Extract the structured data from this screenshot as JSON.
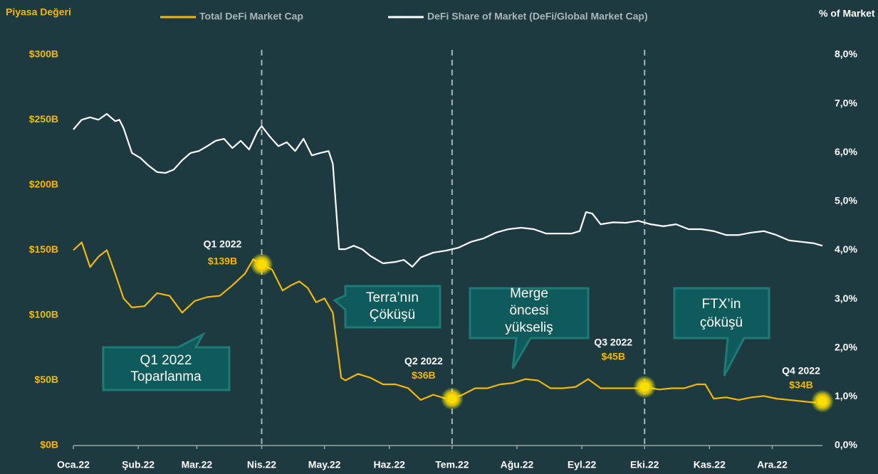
{
  "chart_data": {
    "type": "line",
    "y_label": "Piyasa Değeri",
    "y2_label": "% of Market",
    "xlim": [
      0,
      358
    ],
    "xticks": [
      {
        "value": 0,
        "label": "Oca.22"
      },
      {
        "value": 31,
        "label": "Şub.22"
      },
      {
        "value": 59,
        "label": "Mar.22"
      },
      {
        "value": 90,
        "label": "Nis.22"
      },
      {
        "value": 120,
        "label": "May.22"
      },
      {
        "value": 151,
        "label": "Haz.22"
      },
      {
        "value": 181,
        "label": "Tem.22"
      },
      {
        "value": 212,
        "label": "Ağu.22"
      },
      {
        "value": 243,
        "label": "Eyl.22"
      },
      {
        "value": 273,
        "label": "Eki.22"
      },
      {
        "value": 304,
        "label": "Kas.22"
      },
      {
        "value": 334,
        "label": "Ara.22"
      }
    ],
    "ylim": [
      0,
      300
    ],
    "yticks": [
      {
        "value": 0,
        "label": "$0B"
      },
      {
        "value": 50,
        "label": "$50B"
      },
      {
        "value": 100,
        "label": "$100B"
      },
      {
        "value": 150,
        "label": "$150B"
      },
      {
        "value": 200,
        "label": "$200B"
      },
      {
        "value": 250,
        "label": "$250B"
      },
      {
        "value": 300,
        "label": "$300B"
      }
    ],
    "y2lim": [
      0,
      8
    ],
    "y2ticks": [
      {
        "value": 0,
        "label": "0,0%"
      },
      {
        "value": 1,
        "label": "1,0%"
      },
      {
        "value": 2,
        "label": "2,0%"
      },
      {
        "value": 3,
        "label": "3,0%"
      },
      {
        "value": 4,
        "label": "4,0%"
      },
      {
        "value": 5,
        "label": "5,0%"
      },
      {
        "value": 6,
        "label": "6,0%"
      },
      {
        "value": 7,
        "label": "7,0%"
      },
      {
        "value": 8,
        "label": "8,0%"
      }
    ],
    "series": [
      {
        "name": "Total DeFi Market Cap",
        "color": "#f5b800",
        "axis": "y",
        "x": [
          0,
          4,
          8,
          12,
          16,
          20,
          24,
          28,
          34,
          40,
          46,
          52,
          58,
          64,
          70,
          76,
          82,
          86,
          90,
          95,
          100,
          104,
          108,
          112,
          116,
          120,
          124,
          128,
          130,
          136,
          142,
          148,
          154,
          160,
          166,
          172,
          178,
          181,
          186,
          192,
          198,
          204,
          210,
          216,
          222,
          228,
          234,
          240,
          246,
          252,
          258,
          264,
          270,
          273,
          280,
          286,
          292,
          298,
          302,
          306,
          312,
          318,
          324,
          330,
          336,
          342,
          348,
          354,
          358
        ],
        "values": [
          150,
          156,
          137,
          145,
          150,
          132,
          113,
          106,
          107,
          117,
          115,
          102,
          111,
          114,
          115,
          123,
          132,
          143,
          139,
          135,
          119,
          123,
          126,
          121,
          110,
          113,
          102,
          52,
          50,
          55,
          52,
          47,
          47,
          44,
          35,
          39,
          36,
          36,
          39,
          44,
          44,
          47,
          48,
          51,
          50,
          44,
          44,
          45,
          51,
          44,
          44,
          44,
          44,
          45,
          43,
          44,
          44,
          47,
          47,
          36,
          37,
          35,
          37,
          38,
          36,
          35,
          34,
          33,
          34
        ]
      },
      {
        "name": "DeFi Share of Market (DeFi/Global Market Cap)",
        "color": "#ffffff",
        "axis": "y2",
        "x": [
          0,
          4,
          8,
          12,
          16,
          20,
          22,
          24,
          28,
          32,
          36,
          40,
          44,
          48,
          52,
          56,
          60,
          64,
          68,
          72,
          76,
          80,
          84,
          88,
          90,
          94,
          98,
          102,
          106,
          110,
          114,
          118,
          122,
          124,
          127,
          130,
          134,
          138,
          142,
          148,
          154,
          158,
          162,
          166,
          172,
          178,
          184,
          190,
          196,
          202,
          208,
          214,
          220,
          226,
          232,
          238,
          242,
          245,
          248,
          252,
          258,
          264,
          270,
          276,
          282,
          288,
          294,
          300,
          306,
          312,
          318,
          324,
          330,
          336,
          342,
          348,
          354,
          358
        ],
        "values": [
          6.47,
          6.67,
          6.72,
          6.67,
          6.79,
          6.64,
          6.67,
          6.5,
          5.99,
          5.89,
          5.73,
          5.6,
          5.58,
          5.65,
          5.84,
          5.99,
          6.03,
          6.13,
          6.24,
          6.28,
          6.09,
          6.24,
          6.06,
          6.43,
          6.54,
          6.32,
          6.13,
          6.21,
          6.03,
          6.28,
          5.94,
          5.99,
          6.03,
          5.77,
          4.02,
          4.02,
          4.09,
          4.02,
          3.88,
          3.73,
          3.76,
          3.8,
          3.66,
          3.85,
          3.95,
          3.99,
          4.05,
          4.17,
          4.24,
          4.36,
          4.43,
          4.46,
          4.43,
          4.34,
          4.34,
          4.34,
          4.39,
          4.78,
          4.75,
          4.53,
          4.57,
          4.56,
          4.6,
          4.53,
          4.49,
          4.53,
          4.43,
          4.43,
          4.39,
          4.31,
          4.31,
          4.36,
          4.39,
          4.31,
          4.2,
          4.17,
          4.14,
          4.09
        ]
      }
    ],
    "vlines_x": [
      90,
      181,
      273
    ],
    "markers": [
      {
        "label": "Q1 2022",
        "value_label": "$139B",
        "x": 90,
        "value": 139
      },
      {
        "label": "Q2 2022",
        "value_label": "$36B",
        "x": 181,
        "value": 36
      },
      {
        "label": "Q3 2022",
        "value_label": "$45B",
        "x": 273,
        "value": 45
      },
      {
        "label": "Q4 2022",
        "value_label": "$34B",
        "x": 358,
        "value": 34
      }
    ],
    "annotations": [
      {
        "lines": [
          "Q1 2022",
          "Toparlanma"
        ]
      },
      {
        "lines": [
          "Terra’nın",
          "Çöküşü"
        ]
      },
      {
        "lines": [
          "Merge",
          "öncesi",
          "yükseliş"
        ]
      },
      {
        "lines": [
          "FTX’in",
          "çöküşü"
        ]
      }
    ]
  }
}
